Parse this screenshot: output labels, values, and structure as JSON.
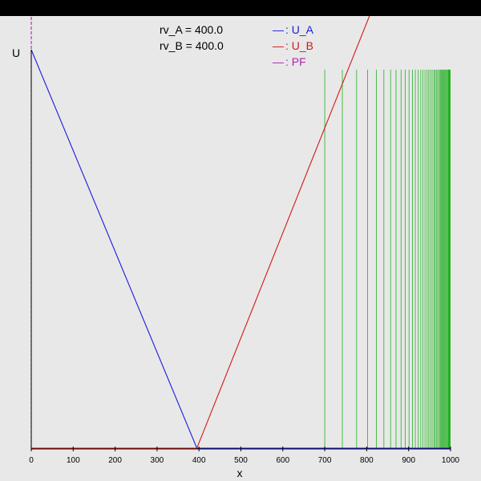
{
  "params": [
    {
      "label": "rv_A = 400.0"
    },
    {
      "label": "rv_B = 400.0"
    }
  ],
  "legend": [
    {
      "marker": "—",
      "text": ": U_A",
      "color": "#1a1ae0"
    },
    {
      "marker": "—",
      "text": ": U_B",
      "color": "#d01818"
    },
    {
      "marker": "—",
      "text": ": PF",
      "color": "#b020b0"
    }
  ],
  "colors": {
    "background": "#e8e8e8",
    "topbar": "#000000",
    "green_lines": "#22b022",
    "axis": "#000000"
  },
  "chart_data": {
    "type": "line",
    "xlabel": "x",
    "ylabel": "U",
    "xlim": [
      0,
      1000
    ],
    "ylim": [
      0,
      1
    ],
    "x_ticks": [
      0,
      100,
      200,
      300,
      400,
      500,
      600,
      700,
      800,
      900,
      1000
    ],
    "grid": false,
    "legend_position": "top-center",
    "series": [
      {
        "name": "U_A",
        "color": "#1a1ae0",
        "points": [
          [
            0,
            1.0
          ],
          [
            395,
            0.0
          ],
          [
            1000,
            0.0
          ]
        ]
      },
      {
        "name": "U_B",
        "color": "#d01818",
        "points": [
          [
            0,
            0.0
          ],
          [
            395,
            0.0
          ],
          [
            820,
            1.12
          ]
        ]
      },
      {
        "name": "PF",
        "color": "#b020b0",
        "points": [
          [
            0,
            0.0
          ],
          [
            0,
            1.1
          ]
        ]
      }
    ],
    "vertical_lines": {
      "color": "#22b022",
      "y_top": 0.95,
      "x": [
        700,
        742,
        776,
        802,
        823,
        841,
        857,
        870,
        882,
        892,
        901,
        909,
        916,
        923,
        929,
        934,
        939,
        944,
        948,
        952,
        956,
        960,
        963,
        966,
        969,
        972,
        975,
        977,
        979,
        981,
        983,
        985,
        987,
        989,
        991,
        993,
        995
      ]
    }
  }
}
